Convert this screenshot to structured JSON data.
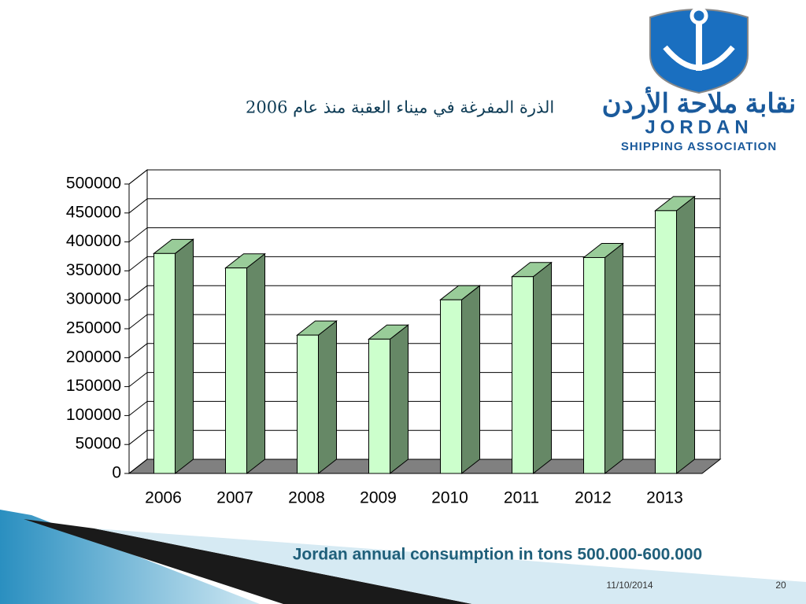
{
  "logo": {
    "arabic": "نقابة ملاحة الأردن",
    "name": "JORDAN",
    "subtitle": "SHIPPING ASSOCIATION"
  },
  "chart_data": {
    "type": "bar3d",
    "title": "الذرة المفرغة في ميناء العقبة منذ عام 2006",
    "categories": [
      "2006",
      "2007",
      "2008",
      "2009",
      "2010",
      "2011",
      "2012",
      "2013"
    ],
    "values": [
      380000,
      355000,
      239000,
      232000,
      300000,
      340000,
      373000,
      454000
    ],
    "color": "#ccffcc",
    "side_color": "#668866",
    "top_color": "#99cc99",
    "ylim": [
      0,
      500000
    ],
    "yticks": [
      0,
      50000,
      100000,
      150000,
      200000,
      250000,
      300000,
      350000,
      400000,
      450000,
      500000
    ],
    "grid": true,
    "annotation": "Jordan annual consumption in tons  500.000-600.000"
  },
  "footer": {
    "date": "11/10/2014",
    "page": "20"
  }
}
